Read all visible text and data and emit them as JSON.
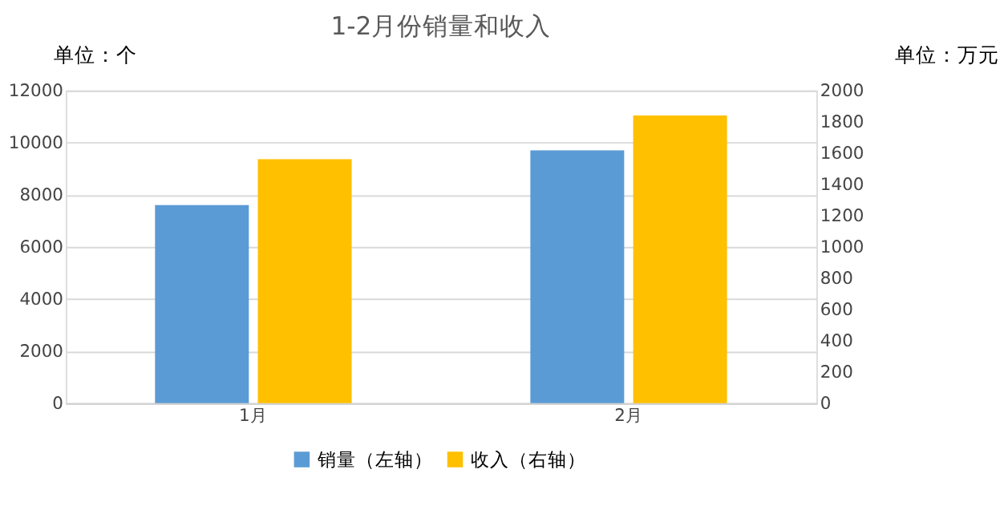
{
  "chart_data": {
    "type": "bar",
    "title": "1-2月份销量和收入",
    "ylabel": "单位：个",
    "y2label": "单位：万元",
    "categories": [
      "1月",
      "2月"
    ],
    "series": [
      {
        "name": "销量（左轴）",
        "color": "#5b9bd5",
        "values": [
          7600,
          9700
        ]
      },
      {
        "name": "收入（右轴）",
        "color": "#ffc000",
        "values": [
          1560,
          1840
        ],
        "axis": "y2"
      }
    ],
    "ylim": [
      0,
      12000
    ],
    "yticks": [
      0,
      2000,
      4000,
      6000,
      8000,
      10000,
      12000
    ],
    "y2lim": [
      0,
      2000
    ],
    "y2ticks": [
      0,
      200,
      400,
      600,
      800,
      1000,
      1200,
      1400,
      1600,
      1800,
      2000
    ],
    "grid": "y",
    "legend": "bottom"
  }
}
